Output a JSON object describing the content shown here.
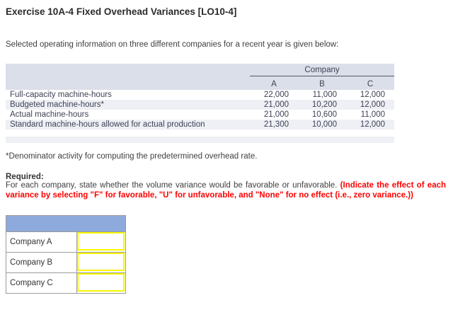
{
  "page": {
    "title": "Exercise 10A-4 Fixed Overhead Variances [LO10-4]",
    "intro": "Selected operating information on three different companies for a recent year is given below:",
    "footnote": "*Denominator activity for computing the predetermined overhead rate.",
    "required_label": "Required:",
    "required_text": "For each company, state whether the volume variance would be favorable or unfavorable. ",
    "required_emphasis": "(Indicate the effect of each variance by selecting \"F\" for favorable, \"U\" for unfavorable, and \"None\" for no effect (i.e., zero variance.))"
  },
  "data_table": {
    "group_header": "Company",
    "column_headers": [
      "A",
      "B",
      "C"
    ],
    "rows": [
      {
        "label": "Full-capacity machine-hours",
        "values": [
          "22,000",
          "11,000",
          "12,000"
        ]
      },
      {
        "label": "Budgeted machine-hours*",
        "values": [
          "21,000",
          "10,200",
          "12,000"
        ]
      },
      {
        "label": "Actual machine-hours",
        "values": [
          "21,000",
          "10,600",
          "11,000"
        ]
      },
      {
        "label": "Standard machine-hours allowed for actual production",
        "values": [
          "21,300",
          "10,000",
          "12,000"
        ]
      }
    ]
  },
  "answer_table": {
    "header_label": "",
    "rows": [
      {
        "label": "Company A",
        "value": ""
      },
      {
        "label": "Company B",
        "value": ""
      },
      {
        "label": "Company C",
        "value": ""
      }
    ]
  },
  "colors": {
    "emphasis_red": "#ff0000",
    "table_band": "#dbdfe9",
    "table_alt_row": "#eef0f5",
    "answer_header_blue": "#8ea9db",
    "answer_input_border_yellow": "#f6f600",
    "grid_border_gray": "#9b9b9b"
  }
}
